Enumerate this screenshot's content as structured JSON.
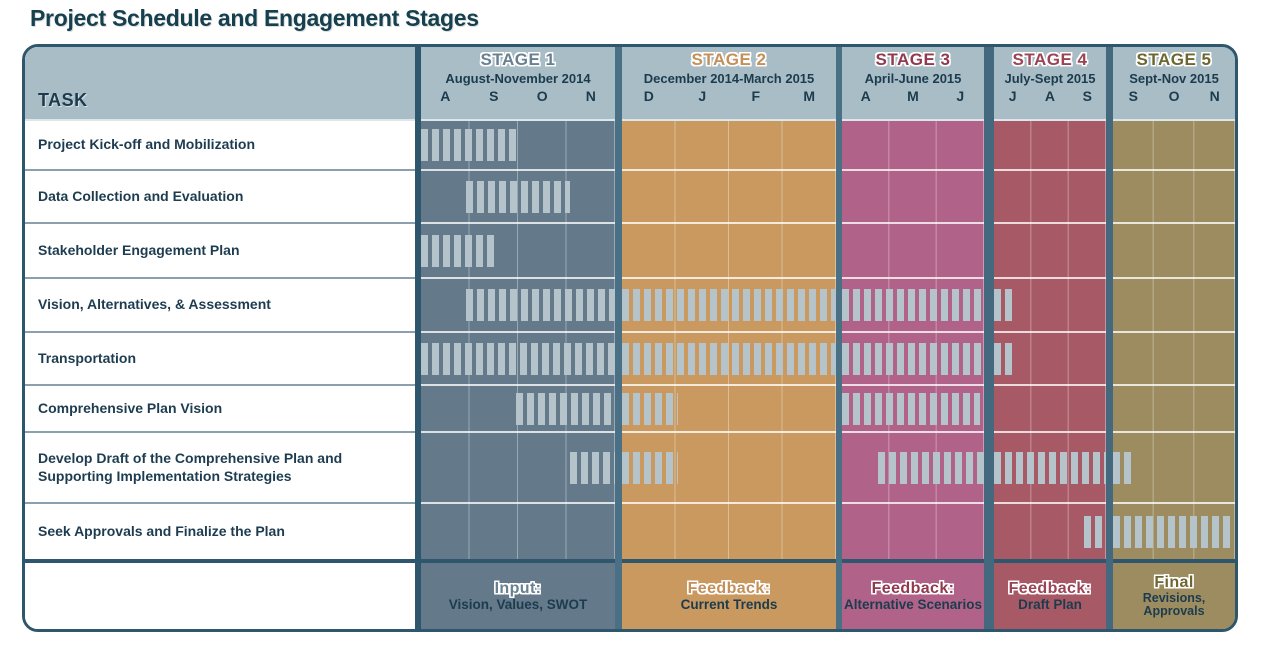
{
  "title": "Project Schedule and Engagement Stages",
  "task_column_header": "TASK",
  "colors": {
    "outer_border": "#2e566c",
    "column_separator": "#4a7086",
    "header_background": "#a9bdc6",
    "tick": "#b5c3cb",
    "text_dark": "#1c3c4e",
    "title_text": "#17404f"
  },
  "chart_data": {
    "type": "gantt",
    "title": "Project Schedule and Engagement Stages",
    "bars_unit": "fraction of stage column width (0 = stage start, 1 = stage end)",
    "stages": [
      {
        "name": "STAGE 1",
        "dates": "August-November 2014",
        "months": [
          "A",
          "S",
          "O",
          "N"
        ],
        "color": "#64798a",
        "label_color": "#68808f",
        "footer_heading": "Input:",
        "footer_sub": "Vision, Values, SWOT"
      },
      {
        "name": "STAGE 2",
        "dates": "December 2014-March 2015",
        "months": [
          "D",
          "J",
          "F",
          "M"
        ],
        "color": "#c9995f",
        "label_color": "#c3905a",
        "footer_heading": "Feedback:",
        "footer_sub": "Current Trends"
      },
      {
        "name": "STAGE 3",
        "dates": "April-June 2015",
        "months": [
          "A",
          "M",
          "J"
        ],
        "color": "#b16289",
        "label_color": "#90394f",
        "footer_heading": "Feedback:",
        "footer_sub": "Alternative Scenarios"
      },
      {
        "name": "STAGE 4",
        "dates": "July-Sept 2015",
        "months": [
          "J",
          "A",
          "S"
        ],
        "color": "#a75a66",
        "label_color": "#9a4456",
        "footer_heading": "Feedback:",
        "footer_sub": "Draft Plan"
      },
      {
        "name": "STAGE 5",
        "dates": "Sept-Nov 2015",
        "months": [
          "S",
          "O",
          "N"
        ],
        "color": "#9c8c60",
        "label_color": "#6e6630",
        "footer_heading": "Final",
        "footer_sub": "Revisions,",
        "footer_sub2": "Approvals"
      }
    ],
    "tasks": [
      {
        "label": "Project Kick-off and Mobilization",
        "bars": [
          {
            "stage": 1,
            "start": 0.0,
            "end": 0.49
          }
        ]
      },
      {
        "label": "Data Collection and Evaluation",
        "bars": [
          {
            "stage": 1,
            "start": 0.23,
            "end": 0.77
          }
        ]
      },
      {
        "label": "Stakeholder Engagement Plan",
        "bars": [
          {
            "stage": 1,
            "start": 0.0,
            "end": 0.38
          }
        ]
      },
      {
        "label": "Vision, Alternatives, & Assessment",
        "bars": [
          {
            "stage": 1,
            "start": 0.23,
            "end": 1.0
          },
          {
            "stage": 2,
            "start": 0.0,
            "end": 1.0
          },
          {
            "stage": 3,
            "start": 0.0,
            "end": 1.0
          },
          {
            "stage": 4,
            "start": 0.0,
            "end": 0.16
          }
        ]
      },
      {
        "label": "Transportation",
        "bars": [
          {
            "stage": 1,
            "start": 0.0,
            "end": 1.0
          },
          {
            "stage": 2,
            "start": 0.0,
            "end": 1.0
          },
          {
            "stage": 3,
            "start": 0.0,
            "end": 1.0
          },
          {
            "stage": 4,
            "start": 0.0,
            "end": 0.16
          }
        ]
      },
      {
        "label": "Comprehensive Plan Vision",
        "bars": [
          {
            "stage": 1,
            "start": 0.49,
            "end": 1.0
          },
          {
            "stage": 2,
            "start": 0.0,
            "end": 0.26
          },
          {
            "stage": 3,
            "start": 0.0,
            "end": 0.97
          }
        ]
      },
      {
        "label": "Develop Draft of the Comprehensive Plan and Supporting Implementation Strategies",
        "bars": [
          {
            "stage": 1,
            "start": 0.77,
            "end": 1.0
          },
          {
            "stage": 2,
            "start": 0.0,
            "end": 0.26
          },
          {
            "stage": 3,
            "start": 0.25,
            "end": 1.0
          },
          {
            "stage": 4,
            "start": 0.0,
            "end": 1.0
          },
          {
            "stage": 5,
            "start": 0.0,
            "end": 0.15
          }
        ]
      },
      {
        "label": "Seek Approvals and Finalize the Plan",
        "bars": [
          {
            "stage": 4,
            "start": 0.8,
            "end": 1.0
          },
          {
            "stage": 5,
            "start": 0.0,
            "end": 0.97
          }
        ]
      }
    ]
  }
}
